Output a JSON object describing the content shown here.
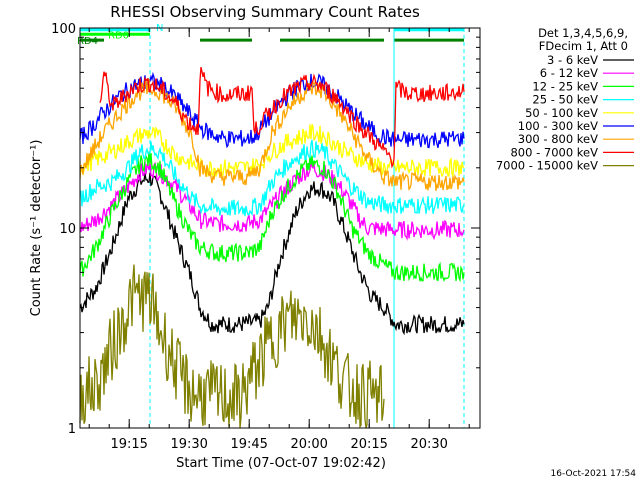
{
  "chart_data": {
    "type": "line",
    "title": "RHESSI Observing Summary Count Rates",
    "xlabel": "Start Time (07-Oct-07 19:02:42)",
    "ylabel": "Count Rate (s⁻¹ detector⁻¹)",
    "x_range_minutes": [
      0,
      100
    ],
    "ylim": [
      1,
      100
    ],
    "y_scale": "log",
    "x_tick_labels": [
      "19:15",
      "19:30",
      "19:45",
      "20:00",
      "20:15",
      "20:30"
    ],
    "x_ticks_minutes": [
      12.3,
      27.3,
      42.3,
      57.3,
      72.3,
      87.3
    ],
    "y_tick_labels": [
      "1",
      "10",
      "100"
    ],
    "y_ticks": [
      1,
      10,
      100
    ],
    "legend_header": [
      "Det 1,3,4,5,6,9,",
      "FDecim 1, Att 0"
    ],
    "legend_placement": "right",
    "footer_stamp": "16-Oct-2021 17:54",
    "flags": [
      {
        "label": "N",
        "color": "#00ffff",
        "segments": [
          [
            0,
            17.5
          ],
          [
            78.5,
            96
          ]
        ],
        "level": 98
      },
      {
        "label": "RD0",
        "color": "#00ff00",
        "segments": [
          [
            0,
            17.5
          ]
        ],
        "level": 93
      },
      {
        "label": "RD4",
        "color": "#008000",
        "segments": [
          [
            0,
            6
          ],
          [
            30,
            43
          ],
          [
            50,
            76
          ],
          [
            78.5,
            96
          ]
        ],
        "level": 87
      }
    ],
    "flag_labels_text": [
      "N",
      "RD0",
      "RD4"
    ],
    "vertical_markers": [
      {
        "x": 0,
        "color": "#00ffff",
        "style": "solid"
      },
      {
        "x": 17.5,
        "color": "#00ffff",
        "style": "dashed"
      },
      {
        "x": 78.5,
        "color": "#00ffff",
        "style": "solid"
      },
      {
        "x": 96,
        "color": "#00ffff",
        "style": "dashed"
      }
    ],
    "series": [
      {
        "name": "3 - 6 keV",
        "color": "#000000",
        "points": [
          [
            0,
            4
          ],
          [
            4,
            5
          ],
          [
            8,
            8
          ],
          [
            12,
            14
          ],
          [
            15,
            17
          ],
          [
            17.5,
            18
          ],
          [
            20,
            15
          ],
          [
            24,
            9
          ],
          [
            28,
            5.5
          ],
          [
            30,
            4
          ],
          [
            33,
            3.3
          ],
          [
            40,
            3.3
          ],
          [
            45,
            3.4
          ],
          [
            47,
            4
          ],
          [
            50,
            7
          ],
          [
            54,
            12
          ],
          [
            57,
            15.5
          ],
          [
            60,
            16
          ],
          [
            63,
            14
          ],
          [
            66,
            10
          ],
          [
            70,
            6
          ],
          [
            73,
            4.5
          ],
          [
            76,
            4
          ],
          [
            79,
            3.3
          ],
          [
            96,
            3.3
          ]
        ]
      },
      {
        "name": "6 - 12 keV",
        "color": "#ff00ff",
        "points": [
          [
            0,
            10
          ],
          [
            4,
            11
          ],
          [
            8,
            13
          ],
          [
            12,
            16
          ],
          [
            15,
            19
          ],
          [
            17.5,
            20
          ],
          [
            20,
            19
          ],
          [
            24,
            16
          ],
          [
            28,
            12.5
          ],
          [
            30,
            11
          ],
          [
            34,
            10.5
          ],
          [
            42,
            10.5
          ],
          [
            45,
            11
          ],
          [
            48,
            13
          ],
          [
            52,
            16
          ],
          [
            56,
            19
          ],
          [
            58,
            20
          ],
          [
            61,
            19
          ],
          [
            64,
            17
          ],
          [
            66,
            15
          ],
          [
            68,
            13
          ],
          [
            70,
            11
          ],
          [
            72,
            10
          ],
          [
            78.5,
            9.8
          ],
          [
            96,
            9.8
          ]
        ]
      },
      {
        "name": "12 - 25 keV",
        "color": "#00ff00",
        "points": [
          [
            0,
            6
          ],
          [
            4,
            8
          ],
          [
            8,
            12
          ],
          [
            12,
            17
          ],
          [
            15,
            21
          ],
          [
            17.5,
            22
          ],
          [
            20,
            20
          ],
          [
            24,
            13
          ],
          [
            28,
            9
          ],
          [
            30,
            8
          ],
          [
            34,
            7.5
          ],
          [
            42,
            7.5
          ],
          [
            45,
            8
          ],
          [
            48,
            12
          ],
          [
            52,
            16
          ],
          [
            56,
            20
          ],
          [
            58,
            21
          ],
          [
            61,
            20
          ],
          [
            64,
            16
          ],
          [
            68,
            10
          ],
          [
            72,
            7.5
          ],
          [
            76,
            6.5
          ],
          [
            78.5,
            6
          ],
          [
            96,
            6
          ]
        ]
      },
      {
        "name": "25 - 50 keV",
        "color": "#00ffff",
        "points": [
          [
            0,
            14
          ],
          [
            4,
            16
          ],
          [
            8,
            17
          ],
          [
            12,
            20
          ],
          [
            15,
            24
          ],
          [
            17.5,
            25
          ],
          [
            20,
            24
          ],
          [
            24,
            18
          ],
          [
            28,
            14
          ],
          [
            30,
            13
          ],
          [
            34,
            12.5
          ],
          [
            42,
            12.5
          ],
          [
            45,
            13
          ],
          [
            48,
            17
          ],
          [
            52,
            21
          ],
          [
            56,
            24
          ],
          [
            58,
            25
          ],
          [
            61,
            24
          ],
          [
            64,
            20
          ],
          [
            68,
            16
          ],
          [
            72,
            13.5
          ],
          [
            76,
            13
          ],
          [
            78.5,
            13
          ],
          [
            96,
            13
          ]
        ]
      },
      {
        "name": "50 - 100 keV",
        "color": "#ffff00",
        "points": [
          [
            0,
            20
          ],
          [
            4,
            22
          ],
          [
            8,
            24
          ],
          [
            12,
            27
          ],
          [
            15,
            29
          ],
          [
            17.5,
            30
          ],
          [
            20,
            28
          ],
          [
            24,
            23
          ],
          [
            28,
            21
          ],
          [
            30,
            20
          ],
          [
            34,
            20
          ],
          [
            42,
            20
          ],
          [
            45,
            21
          ],
          [
            48,
            24
          ],
          [
            52,
            27
          ],
          [
            56,
            29
          ],
          [
            58,
            30
          ],
          [
            61,
            29
          ],
          [
            64,
            26
          ],
          [
            68,
            23
          ],
          [
            72,
            21
          ],
          [
            76,
            20
          ],
          [
            78.5,
            20
          ],
          [
            96,
            20
          ]
        ]
      },
      {
        "name": "100 - 300 keV",
        "color": "#0000ff",
        "points": [
          [
            0,
            28
          ],
          [
            3,
            32
          ],
          [
            6,
            38
          ],
          [
            10,
            46
          ],
          [
            14,
            52
          ],
          [
            17.5,
            54
          ],
          [
            20,
            52
          ],
          [
            24,
            45
          ],
          [
            27,
            38
          ],
          [
            30,
            32
          ],
          [
            32,
            30
          ],
          [
            36,
            28
          ],
          [
            42,
            28
          ],
          [
            44,
            29
          ],
          [
            46,
            33
          ],
          [
            50,
            42
          ],
          [
            54,
            50
          ],
          [
            57,
            54
          ],
          [
            60,
            53
          ],
          [
            64,
            46
          ],
          [
            68,
            38
          ],
          [
            72,
            32
          ],
          [
            75,
            29
          ],
          [
            78.5,
            27.5
          ],
          [
            96,
            28
          ]
        ]
      },
      {
        "name": "300 - 800 keV",
        "color": "#ffa500",
        "points": [
          [
            0,
            19
          ],
          [
            3,
            24
          ],
          [
            6,
            30
          ],
          [
            10,
            38
          ],
          [
            14,
            47
          ],
          [
            17.5,
            50
          ],
          [
            20,
            48
          ],
          [
            24,
            40
          ],
          [
            28,
            29
          ],
          [
            30,
            20
          ],
          [
            34,
            18
          ],
          [
            42,
            18
          ],
          [
            45,
            20
          ],
          [
            48,
            30
          ],
          [
            52,
            40
          ],
          [
            56,
            48
          ],
          [
            58,
            50
          ],
          [
            61,
            48
          ],
          [
            64,
            40
          ],
          [
            68,
            30
          ],
          [
            72,
            22
          ],
          [
            76,
            18
          ],
          [
            78.5,
            17
          ],
          [
            96,
            17
          ]
        ]
      },
      {
        "name": "800 - 7000 keV",
        "color": "#ff0000",
        "points": [
          [
            5,
            42
          ],
          [
            6,
            60
          ],
          [
            8,
            40
          ],
          [
            12,
            48
          ],
          [
            15,
            52
          ],
          [
            17.5,
            53
          ],
          [
            20,
            50
          ],
          [
            24,
            42
          ],
          [
            27,
            34
          ],
          [
            29.5,
            31
          ],
          [
            30,
            60
          ],
          [
            32,
            50
          ],
          [
            36,
            46
          ],
          [
            42,
            47
          ],
          [
            43,
            50
          ],
          [
            43.5,
            30
          ],
          [
            46,
            35
          ],
          [
            50,
            44
          ],
          [
            54,
            50
          ],
          [
            57,
            53
          ],
          [
            60,
            52
          ],
          [
            64,
            45
          ],
          [
            67,
            38
          ],
          [
            70,
            32
          ],
          [
            73,
            28
          ],
          [
            76,
            24
          ],
          [
            78.5,
            22
          ],
          [
            79,
            50
          ],
          [
            82,
            47
          ],
          [
            90,
            47
          ],
          [
            96,
            48
          ]
        ]
      },
      {
        "name": "7000 - 15000 keV",
        "color": "#808000",
        "points": [
          [
            0,
            1.5
          ],
          [
            4,
            1.6
          ],
          [
            8,
            2.5
          ],
          [
            11,
            3.5
          ],
          [
            13,
            4.5
          ],
          [
            17.5,
            4.5
          ],
          [
            19,
            3.5
          ],
          [
            22,
            2.5
          ],
          [
            25,
            1.8
          ],
          [
            28,
            1.5
          ],
          [
            40,
            1.4
          ],
          [
            44,
            2
          ],
          [
            48,
            2.8
          ],
          [
            52,
            3.5
          ],
          [
            56,
            3.6
          ],
          [
            58,
            3.4
          ],
          [
            61,
            2.7
          ],
          [
            64,
            2
          ],
          [
            67,
            1.6
          ],
          [
            70,
            1.5
          ],
          [
            76,
            1.4
          ]
        ]
      }
    ]
  }
}
